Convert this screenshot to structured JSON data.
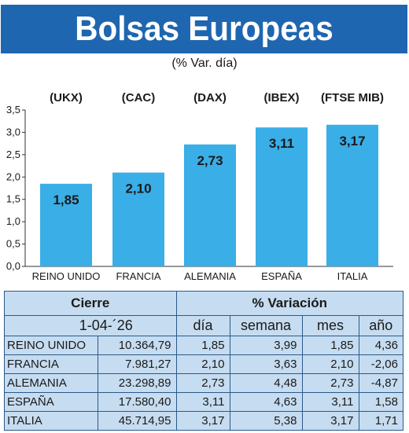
{
  "title": "Bolsas Europeas",
  "subtitle": "(% Var. día)",
  "chart_data": {
    "type": "bar",
    "categories": [
      "REINO UNIDO",
      "FRANCIA",
      "ALEMANIA",
      "ESPAÑA",
      "ITALIA"
    ],
    "index_labels": [
      "(UKX)",
      "(CAC)",
      "(DAX)",
      "(IBEX)",
      "(FTSE MIB)"
    ],
    "values": [
      1.85,
      2.1,
      2.73,
      3.11,
      3.17
    ],
    "value_labels": [
      "1,85",
      "2,10",
      "2,73",
      "3,11",
      "3,17"
    ],
    "yticks": [
      "0,0",
      "0,5",
      "1,0",
      "1,5",
      "2,0",
      "2,5",
      "3,0",
      "3,5"
    ],
    "ylim": [
      0,
      3.5
    ],
    "bar_color": "#3aaee6",
    "grid": false
  },
  "table": {
    "header_cierre": "Cierre",
    "header_variacion": "% Variación",
    "date": "1-04-´26",
    "col_dia": "día",
    "col_semana": "semana",
    "col_mes": "mes",
    "col_anio": "año",
    "rows": [
      {
        "name": "REINO UNIDO",
        "cierre": "10.364,79",
        "dia": "1,85",
        "semana": "3,99",
        "mes": "1,85",
        "anio": "4,36"
      },
      {
        "name": "FRANCIA",
        "cierre": "7.981,27",
        "dia": "2,10",
        "semana": "3,63",
        "mes": "2,10",
        "anio": "-2,06"
      },
      {
        "name": "ALEMANIA",
        "cierre": "23.298,89",
        "dia": "2,73",
        "semana": "4,48",
        "mes": "2,73",
        "anio": "-4,87"
      },
      {
        "name": "ESPAÑA",
        "cierre": "17.580,40",
        "dia": "3,11",
        "semana": "4,63",
        "mes": "3,11",
        "anio": "1,58"
      },
      {
        "name": "ITALIA",
        "cierre": "45.714,95",
        "dia": "3,17",
        "semana": "5,38",
        "mes": "3,17",
        "anio": "1,71"
      }
    ]
  }
}
